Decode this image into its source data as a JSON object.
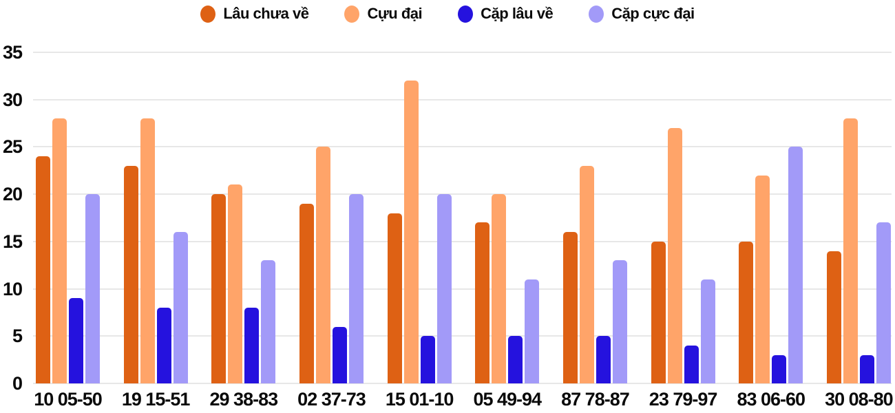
{
  "chart_data": {
    "type": "bar",
    "title": "",
    "xlabel": "",
    "ylabel": "",
    "categories": [
      "10 05-50",
      "19 15-51",
      "29 38-83",
      "02 37-73",
      "15 01-10",
      "05 49-94",
      "87 78-87",
      "23 79-97",
      "83 06-60",
      "30 08-80"
    ],
    "series": [
      {
        "name": "Lâu chưa về",
        "color": "#de6114",
        "values": [
          24,
          23,
          20,
          19,
          18,
          17,
          16,
          15,
          15,
          14
        ]
      },
      {
        "name": "Cựu đại",
        "color": "#ffa469",
        "values": [
          28,
          28,
          21,
          25,
          32,
          20,
          23,
          27,
          22,
          28
        ]
      },
      {
        "name": "Cặp lâu về",
        "color": "#2512de",
        "values": [
          9,
          8,
          8,
          6,
          5,
          5,
          5,
          4,
          3,
          3
        ]
      },
      {
        "name": "Cặp cực đại",
        "color": "#a29af8",
        "values": [
          20,
          16,
          13,
          20,
          20,
          11,
          13,
          11,
          25,
          17
        ]
      }
    ],
    "ylim": [
      0,
      35
    ],
    "yticks": [
      0,
      5,
      10,
      15,
      20,
      25,
      30,
      35
    ],
    "grid": "horizontal",
    "gridline_color": "#e7e7e7",
    "legend_position": "top-center",
    "legend_marker": "oval"
  }
}
